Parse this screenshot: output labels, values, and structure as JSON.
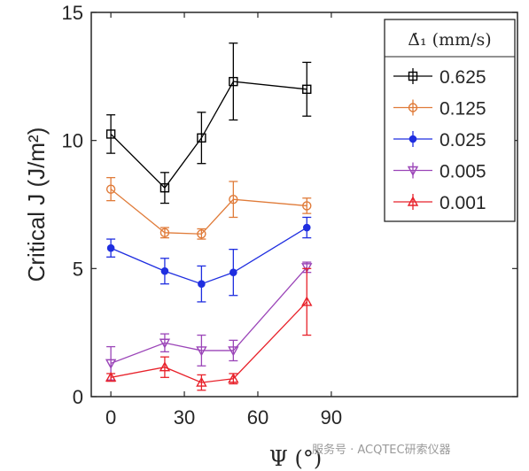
{
  "chart_data": {
    "type": "line",
    "ylabel": "Critical J (J/m²)",
    "xlabel": "Ψ (°)",
    "xlim": [
      -8,
      166
    ],
    "ylim": [
      0,
      15
    ],
    "xticks": [
      0,
      30,
      60,
      90
    ],
    "yticks": [
      0,
      5,
      10,
      15
    ],
    "grid": false,
    "legend_title": "Δ̇₁ (mm/s)",
    "legend_position": "top-right",
    "series": [
      {
        "name": "0.625",
        "color": "#000000",
        "marker": "square",
        "x": [
          0,
          22,
          37,
          50,
          80
        ],
        "y": [
          10.25,
          8.15,
          10.1,
          12.3,
          12.0
        ],
        "err": [
          0.75,
          0.6,
          1.0,
          1.5,
          1.05
        ]
      },
      {
        "name": "0.125",
        "color": "#e07b39",
        "marker": "circle",
        "x": [
          0,
          22,
          37,
          50,
          80
        ],
        "y": [
          8.1,
          6.4,
          6.35,
          7.7,
          7.45
        ],
        "err": [
          0.45,
          0.2,
          0.2,
          0.7,
          0.3
        ]
      },
      {
        "name": "0.025",
        "color": "#1f2ee0",
        "marker": "dot",
        "x": [
          0,
          22,
          37,
          50,
          80
        ],
        "y": [
          5.8,
          4.9,
          4.4,
          4.85,
          6.6
        ],
        "err": [
          0.35,
          0.5,
          0.7,
          0.9,
          0.4
        ]
      },
      {
        "name": "0.005",
        "color": "#9b45b8",
        "marker": "triangle-down",
        "x": [
          0,
          22,
          37,
          50,
          80
        ],
        "y": [
          1.3,
          2.1,
          1.8,
          1.8,
          5.05
        ],
        "err": [
          0.65,
          0.35,
          0.6,
          0.4,
          0.2
        ]
      },
      {
        "name": "0.001",
        "color": "#e8212a",
        "marker": "triangle-up",
        "x": [
          0,
          22,
          37,
          50,
          80
        ],
        "y": [
          0.75,
          1.15,
          0.55,
          0.7,
          3.7
        ],
        "err": [
          0.15,
          0.4,
          0.3,
          0.2,
          1.3
        ]
      }
    ]
  },
  "watermark": "服务号 · ACQTEC研索仪器"
}
